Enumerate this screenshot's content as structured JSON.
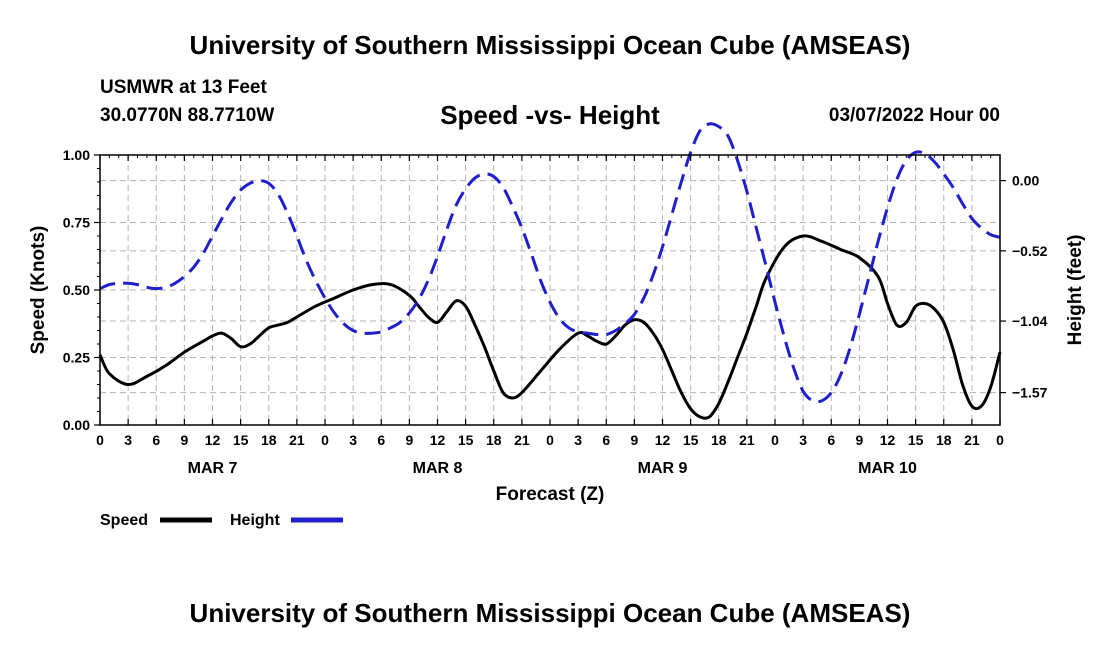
{
  "chart_data": {
    "type": "line",
    "title": "University of Southern Mississippi Ocean Cube (AMSEAS)",
    "subtitle": "Speed -vs- Height",
    "station": "USMWR at 13 Feet",
    "location": "30.0770N  88.7710W",
    "datetime": "03/07/2022 Hour 00",
    "footer_title": "University of Southern Mississippi Ocean Cube (AMSEAS)",
    "xlabel": "Forecast (Z)",
    "ylabel_left": "Speed (Knots)",
    "ylabel_right": "Height (feet)",
    "xlim": [
      0,
      96
    ],
    "ylim_left": [
      0,
      1
    ],
    "ylim_right": [
      -1.81,
      0.19
    ],
    "x_tick_labels": [
      "0",
      "3",
      "6",
      "9",
      "12",
      "15",
      "18",
      "21",
      "0",
      "3",
      "6",
      "9",
      "12",
      "15",
      "18",
      "21",
      "0",
      "3",
      "6",
      "9",
      "12",
      "15",
      "18",
      "21",
      "0",
      "3",
      "6",
      "9",
      "12",
      "15",
      "18",
      "21",
      "0"
    ],
    "day_labels": [
      {
        "label": "MAR 7",
        "hour": 12
      },
      {
        "label": "MAR 8",
        "hour": 36
      },
      {
        "label": "MAR 9",
        "hour": 60
      },
      {
        "label": "MAR 10",
        "hour": 84
      }
    ],
    "left_ticks": [
      {
        "value": 0,
        "label": "0.00"
      },
      {
        "value": 0.25,
        "label": "0.25"
      },
      {
        "value": 0.5,
        "label": "0.50"
      },
      {
        "value": 0.75,
        "label": "0.75"
      },
      {
        "value": 1.0,
        "label": "1.00"
      }
    ],
    "right_ticks": [
      {
        "value": 0.0,
        "label": "0.00"
      },
      {
        "value": -0.52,
        "label": "−0.52"
      },
      {
        "value": -1.04,
        "label": "−1.04"
      },
      {
        "value": -1.57,
        "label": "−1.57"
      }
    ],
    "legend": [
      {
        "name": "Speed",
        "color": "#000000"
      },
      {
        "name": "Height",
        "color": "#1f1fcc"
      }
    ],
    "series": [
      {
        "name": "Speed",
        "axis": "left",
        "color": "#000000",
        "dash": "solid",
        "x": [
          0,
          1,
          3,
          5,
          7,
          9,
          11,
          12,
          13,
          14,
          15,
          16,
          17,
          18,
          19,
          20,
          21,
          23,
          25,
          27,
          29,
          31,
          33,
          34,
          35,
          36,
          37,
          38,
          39,
          40,
          41,
          42,
          43,
          44,
          45,
          47,
          49,
          51,
          52,
          53,
          54,
          55,
          56,
          57,
          58,
          59,
          60,
          61,
          62,
          63,
          64,
          65,
          66,
          67,
          68,
          69,
          70,
          71,
          73,
          75,
          77,
          79,
          81,
          83,
          84,
          85,
          86,
          87,
          88,
          89,
          90,
          91,
          92,
          93,
          94,
          95,
          96
        ],
        "values": [
          0.26,
          0.19,
          0.15,
          0.18,
          0.22,
          0.27,
          0.31,
          0.33,
          0.34,
          0.32,
          0.29,
          0.3,
          0.33,
          0.36,
          0.37,
          0.38,
          0.4,
          0.44,
          0.47,
          0.5,
          0.52,
          0.52,
          0.48,
          0.44,
          0.4,
          0.38,
          0.42,
          0.46,
          0.44,
          0.37,
          0.29,
          0.2,
          0.12,
          0.1,
          0.12,
          0.2,
          0.28,
          0.34,
          0.33,
          0.31,
          0.3,
          0.33,
          0.37,
          0.39,
          0.38,
          0.34,
          0.28,
          0.2,
          0.12,
          0.06,
          0.03,
          0.03,
          0.08,
          0.16,
          0.25,
          0.34,
          0.44,
          0.54,
          0.66,
          0.7,
          0.68,
          0.65,
          0.62,
          0.55,
          0.45,
          0.37,
          0.38,
          0.44,
          0.45,
          0.43,
          0.38,
          0.28,
          0.15,
          0.07,
          0.07,
          0.14,
          0.27
        ]
      },
      {
        "name": "Height",
        "axis": "right",
        "color": "#1f1fcc",
        "dash": "dashed",
        "x": [
          0,
          1,
          2,
          3,
          4,
          5,
          6,
          7,
          8,
          9,
          10,
          11,
          12,
          13,
          14,
          15,
          16,
          17,
          18,
          19,
          20,
          21,
          22,
          23,
          24,
          25,
          26,
          27,
          28,
          29,
          30,
          31,
          32,
          33,
          34,
          35,
          36,
          37,
          38,
          39,
          40,
          41,
          42,
          43,
          44,
          45,
          46,
          47,
          48,
          49,
          50,
          51,
          52,
          53,
          54,
          55,
          56,
          57,
          58,
          59,
          60,
          61,
          62,
          63,
          64,
          65,
          66,
          67,
          68,
          69,
          70,
          71,
          72,
          73,
          74,
          75,
          76,
          77,
          78,
          79,
          80,
          81,
          82,
          83,
          84,
          85,
          86,
          87,
          88,
          89,
          90,
          91,
          92,
          93,
          94,
          95,
          96
        ],
        "values": [
          -0.8,
          -0.77,
          -0.76,
          -0.76,
          -0.77,
          -0.79,
          -0.8,
          -0.79,
          -0.76,
          -0.71,
          -0.64,
          -0.54,
          -0.41,
          -0.28,
          -0.16,
          -0.07,
          -0.02,
          0.0,
          -0.02,
          -0.1,
          -0.24,
          -0.41,
          -0.59,
          -0.74,
          -0.87,
          -0.98,
          -1.06,
          -1.11,
          -1.13,
          -1.13,
          -1.12,
          -1.09,
          -1.05,
          -0.98,
          -0.88,
          -0.74,
          -0.56,
          -0.36,
          -0.18,
          -0.06,
          0.02,
          0.05,
          0.03,
          -0.05,
          -0.19,
          -0.35,
          -0.54,
          -0.74,
          -0.9,
          -1.02,
          -1.09,
          -1.12,
          -1.13,
          -1.14,
          -1.14,
          -1.11,
          -1.06,
          -0.99,
          -0.87,
          -0.7,
          -0.49,
          -0.25,
          -0.01,
          0.21,
          0.37,
          0.42,
          0.4,
          0.33,
          0.15,
          -0.08,
          -0.35,
          -0.62,
          -0.9,
          -1.16,
          -1.39,
          -1.56,
          -1.63,
          -1.63,
          -1.57,
          -1.44,
          -1.24,
          -0.99,
          -0.72,
          -0.45,
          -0.2,
          0.01,
          0.15,
          0.21,
          0.2,
          0.14,
          0.05,
          -0.05,
          -0.17,
          -0.28,
          -0.35,
          -0.4,
          -0.42
        ]
      }
    ]
  }
}
